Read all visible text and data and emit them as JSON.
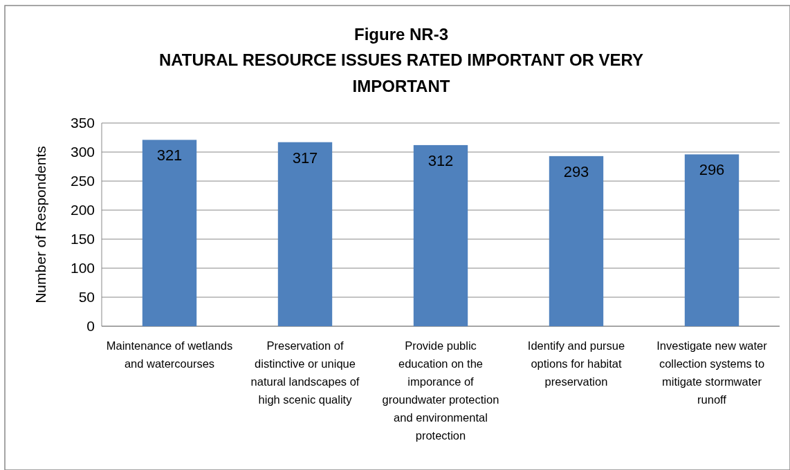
{
  "chart_data": {
    "type": "bar",
    "title": "Figure NR-3",
    "subtitle": "NATURAL RESOURCE ISSUES RATED IMPORTANT OR VERY IMPORTANT",
    "ylabel": "Number of Respondents",
    "categories": [
      "Maintenance of wetlands and watercourses",
      "Preservation of distinctive or unique natural landscapes of high scenic quality",
      "Provide public education on the imporance of groundwater protection and environmental protection",
      "Identify and pursue options for habitat preservation",
      "Investigate new water collection systems to mitigate stormwater runoff"
    ],
    "values": [
      321,
      317,
      312,
      293,
      296
    ],
    "color": "#4f81bd",
    "ylim": [
      0,
      350
    ],
    "yticks": [
      0,
      50,
      100,
      150,
      200,
      250,
      300,
      350
    ],
    "grid": "y",
    "data_labels": true
  }
}
